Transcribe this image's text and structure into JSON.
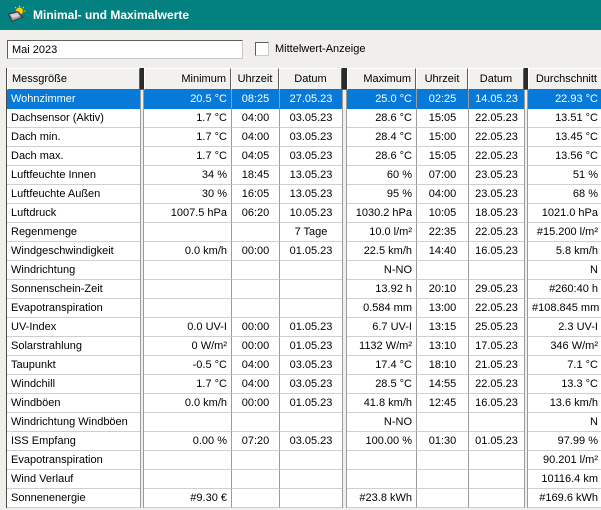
{
  "window": {
    "title": "Minimal- und Maximalwerte",
    "icon": "weather-station-icon"
  },
  "toolbar": {
    "period_value": "Mai 2023",
    "mittelwert_checkbox": {
      "label": "Mittelwert-Anzeige",
      "checked": false
    }
  },
  "colors": {
    "titlebar": "#038181",
    "selection": "#0779d8",
    "window_bg": "#f0efec",
    "grid_line": "#9b9b9b",
    "sun_icon_yellow": "#ffd200"
  },
  "table": {
    "columns": [
      "Messgröße",
      "Minimum",
      "Uhrzeit",
      "Datum",
      "Maximum",
      "Uhrzeit",
      "Datum",
      "Durchschnitt"
    ],
    "rows": [
      {
        "name": "Wohnzimmer",
        "min": "20.5 °C",
        "min_time": "08:25",
        "min_date": "27.05.23",
        "max": "25.0 °C",
        "max_time": "02:25",
        "max_date": "14.05.23",
        "avg": "22.93 °C",
        "selected": true
      },
      {
        "name": "Dachsensor (Aktiv)",
        "min": "1.7 °C",
        "min_time": "04:00",
        "min_date": "03.05.23",
        "max": "28.6 °C",
        "max_time": "15:05",
        "max_date": "22.05.23",
        "avg": "13.51 °C",
        "selected": false
      },
      {
        "name": "Dach min.",
        "min": "1.7 °C",
        "min_time": "04:00",
        "min_date": "03.05.23",
        "max": "28.4 °C",
        "max_time": "15:00",
        "max_date": "22.05.23",
        "avg": "13.45 °C",
        "selected": false
      },
      {
        "name": "Dach max.",
        "min": "1.7 °C",
        "min_time": "04:05",
        "min_date": "03.05.23",
        "max": "28.6 °C",
        "max_time": "15:05",
        "max_date": "22.05.23",
        "avg": "13.56 °C",
        "selected": false
      },
      {
        "name": "Luftfeuchte Innen",
        "min": "34 %",
        "min_time": "18:45",
        "min_date": "13.05.23",
        "max": "60 %",
        "max_time": "07:00",
        "max_date": "23.05.23",
        "avg": "51 %",
        "selected": false
      },
      {
        "name": "Luftfeuchte Außen",
        "min": "30 %",
        "min_time": "16:05",
        "min_date": "13.05.23",
        "max": "95 %",
        "max_time": "04:00",
        "max_date": "23.05.23",
        "avg": "68 %",
        "selected": false
      },
      {
        "name": "Luftdruck",
        "min": "1007.5 hPa",
        "min_time": "06:20",
        "min_date": "10.05.23",
        "max": "1030.2 hPa",
        "max_time": "10:05",
        "max_date": "18.05.23",
        "avg": "1021.0 hPa",
        "selected": false
      },
      {
        "name": "Regenmenge",
        "min": "",
        "min_time": "",
        "min_date": "7 Tage",
        "max": "10.0 l/m²",
        "max_time": "22:35",
        "max_date": "22.05.23",
        "avg": "#15.200 l/m²",
        "selected": false
      },
      {
        "name": "Windgeschwindigkeit",
        "min": "0.0 km/h",
        "min_time": "00:00",
        "min_date": "01.05.23",
        "max": "22.5 km/h",
        "max_time": "14:40",
        "max_date": "16.05.23",
        "avg": "5.8 km/h",
        "selected": false
      },
      {
        "name": "Windrichtung",
        "min": "",
        "min_time": "",
        "min_date": "",
        "max": "N-NO",
        "max_time": "",
        "max_date": "",
        "avg": "N",
        "selected": false
      },
      {
        "name": "Sonnenschein-Zeit",
        "min": "",
        "min_time": "",
        "min_date": "",
        "max": "13.92 h",
        "max_time": "20:10",
        "max_date": "29.05.23",
        "avg": "#260:40 h",
        "selected": false
      },
      {
        "name": "Evapotranspiration",
        "min": "",
        "min_time": "",
        "min_date": "",
        "max": "0.584 mm",
        "max_time": "13:00",
        "max_date": "22.05.23",
        "avg": "#108.845 mm",
        "selected": false
      },
      {
        "name": "UV-Index",
        "min": "0.0 UV-I",
        "min_time": "00:00",
        "min_date": "01.05.23",
        "max": "6.7 UV-I",
        "max_time": "13:15",
        "max_date": "25.05.23",
        "avg": "2.3 UV-I",
        "selected": false
      },
      {
        "name": "Solarstrahlung",
        "min": "0 W/m²",
        "min_time": "00:00",
        "min_date": "01.05.23",
        "max": "1132 W/m²",
        "max_time": "13:10",
        "max_date": "17.05.23",
        "avg": "346 W/m²",
        "selected": false
      },
      {
        "name": "Taupunkt",
        "min": "-0.5 °C",
        "min_time": "04:00",
        "min_date": "03.05.23",
        "max": "17.4 °C",
        "max_time": "18:10",
        "max_date": "21.05.23",
        "avg": "7.1 °C",
        "selected": false
      },
      {
        "name": "Windchill",
        "min": "1.7 °C",
        "min_time": "04:00",
        "min_date": "03.05.23",
        "max": "28.5 °C",
        "max_time": "14:55",
        "max_date": "22.05.23",
        "avg": "13.3 °C",
        "selected": false
      },
      {
        "name": "Windböen",
        "min": "0.0 km/h",
        "min_time": "00:00",
        "min_date": "01.05.23",
        "max": "41.8 km/h",
        "max_time": "12:45",
        "max_date": "16.05.23",
        "avg": "13.6 km/h",
        "selected": false
      },
      {
        "name": "Windrichtung Windböen",
        "min": "",
        "min_time": "",
        "min_date": "",
        "max": "N-NO",
        "max_time": "",
        "max_date": "",
        "avg": "N",
        "selected": false
      },
      {
        "name": "ISS Empfang",
        "min": "0.00 %",
        "min_time": "07:20",
        "min_date": "03.05.23",
        "max": "100.00 %",
        "max_time": "01:30",
        "max_date": "01.05.23",
        "avg": "97.99 %",
        "selected": false
      },
      {
        "name": "Evapotranspiration",
        "min": "",
        "min_time": "",
        "min_date": "",
        "max": "",
        "max_time": "",
        "max_date": "",
        "avg": "90.201 l/m²",
        "selected": false
      },
      {
        "name": "Wind Verlauf",
        "min": "",
        "min_time": "",
        "min_date": "",
        "max": "",
        "max_time": "",
        "max_date": "",
        "avg": "10116.4 km",
        "selected": false
      },
      {
        "name": "Sonnenenergie",
        "min": "#9.30 €",
        "min_time": "",
        "min_date": "",
        "max": "#23.8 kWh",
        "max_time": "",
        "max_date": "",
        "avg": "#169.6 kWh",
        "selected": false
      }
    ]
  }
}
